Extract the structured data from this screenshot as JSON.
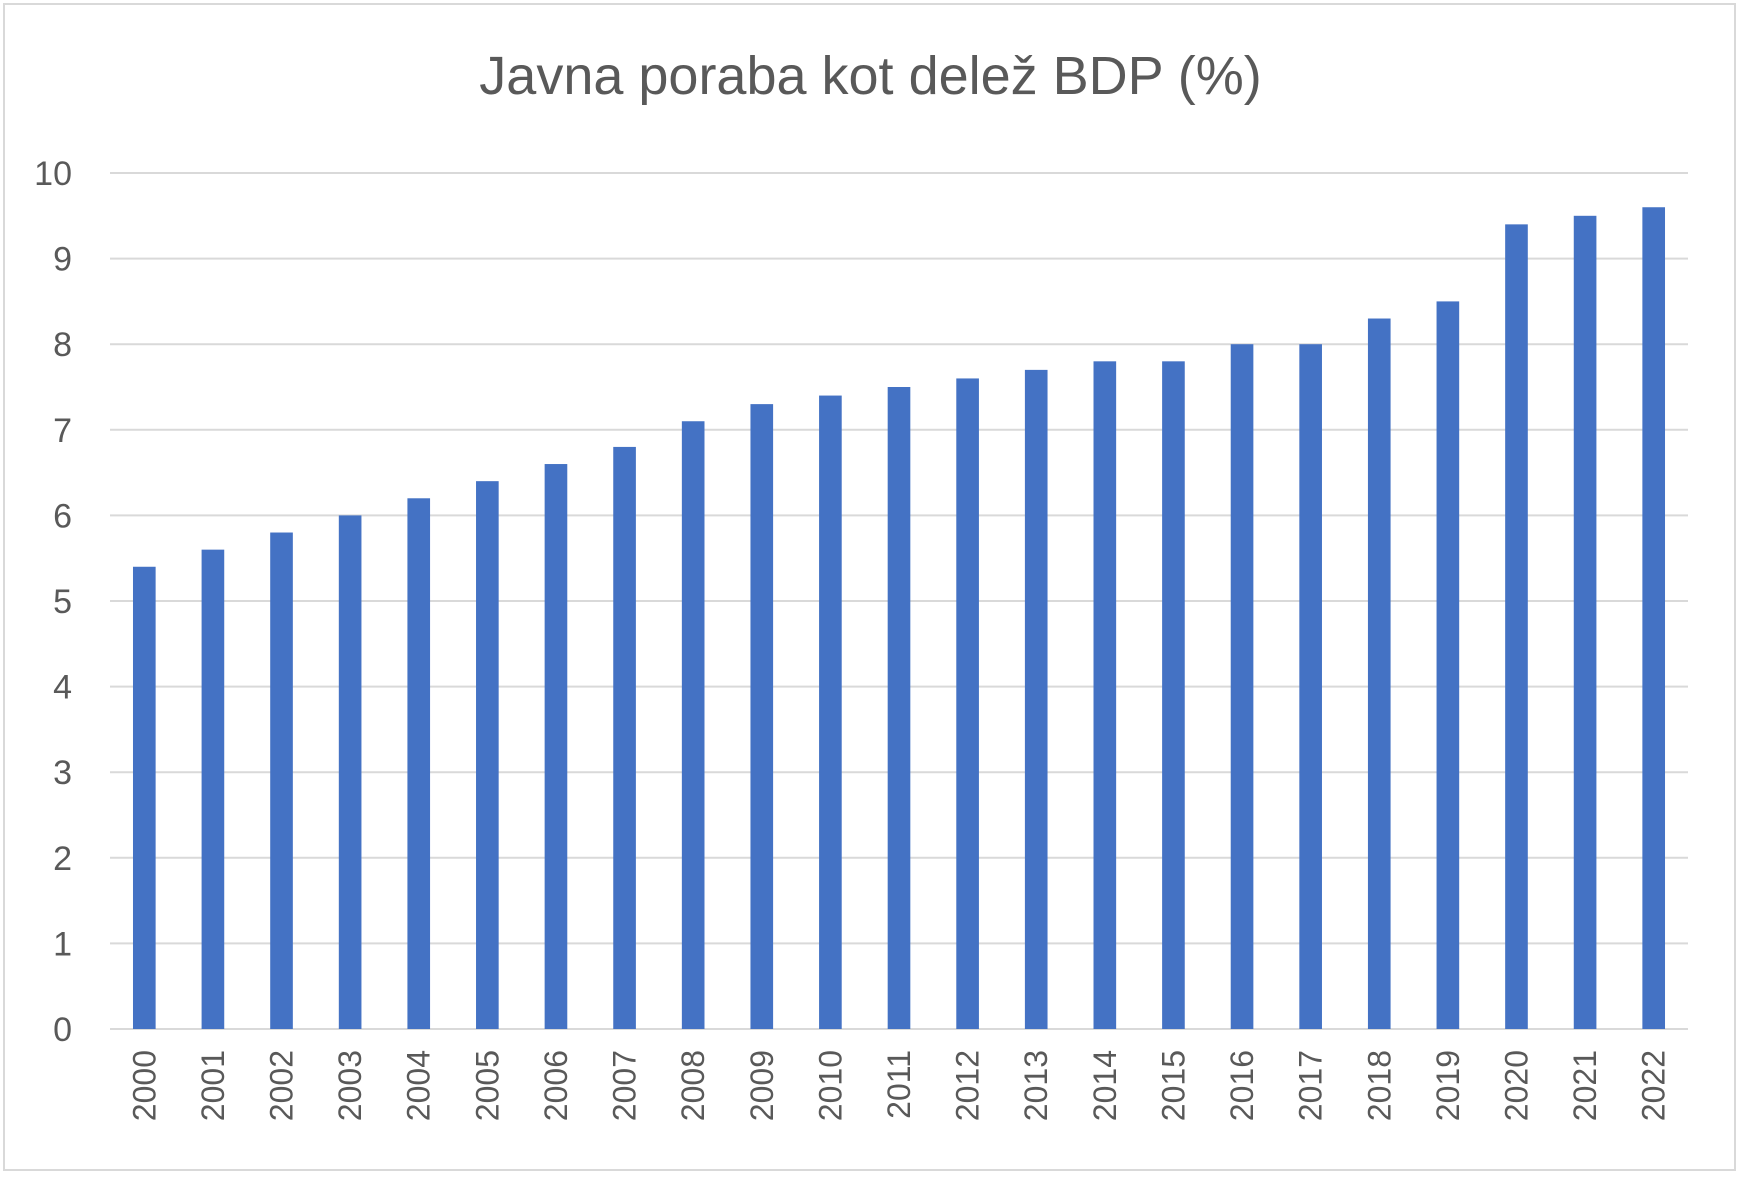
{
  "chart_data": {
    "type": "bar",
    "title": "Javna poraba kot delež BDP (%)",
    "xlabel": "",
    "ylabel": "",
    "categories": [
      "2000",
      "2001",
      "2002",
      "2003",
      "2004",
      "2005",
      "2006",
      "2007",
      "2008",
      "2009",
      "2010",
      "2011",
      "2012",
      "2013",
      "2014",
      "2015",
      "2016",
      "2017",
      "2018",
      "2019",
      "2020",
      "2021",
      "2022"
    ],
    "values": [
      5.4,
      5.6,
      5.8,
      6.0,
      6.2,
      6.4,
      6.6,
      6.8,
      7.1,
      7.3,
      7.4,
      7.5,
      7.6,
      7.7,
      7.8,
      7.8,
      8.0,
      8.0,
      8.3,
      8.5,
      9.4,
      9.5,
      9.6
    ],
    "ylim": [
      0,
      10
    ],
    "yticks": [
      "0",
      "1",
      "2",
      "3",
      "4",
      "5",
      "6",
      "7",
      "8",
      "9",
      "10"
    ],
    "grid": true,
    "legend": "none",
    "colors": {
      "bar": "#4472c4",
      "grid": "#d9d9d9",
      "text": "#595959"
    }
  }
}
